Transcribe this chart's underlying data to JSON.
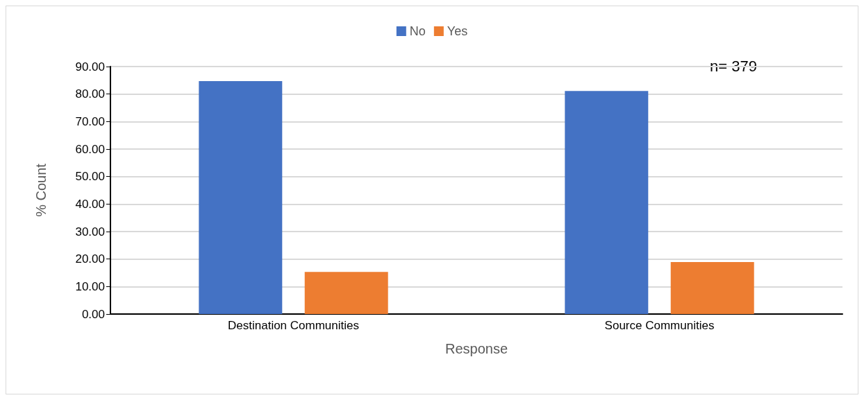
{
  "chart_data": {
    "type": "bar",
    "xlabel": "Response",
    "ylabel": "% Count",
    "categories": [
      "Destination Communities",
      "Source Communities"
    ],
    "series": [
      {
        "name": "No",
        "color": "#4472c4",
        "values": [
          84.7,
          81.1
        ]
      },
      {
        "name": "Yes",
        "color": "#ed7d31",
        "values": [
          15.3,
          18.9
        ]
      }
    ],
    "ylim": [
      0,
      90
    ],
    "yticks": [
      {
        "value": 0,
        "label": "0.00"
      },
      {
        "value": 10,
        "label": "10.00"
      },
      {
        "value": 20,
        "label": "20.00"
      },
      {
        "value": 30,
        "label": "30.00"
      },
      {
        "value": 40,
        "label": "40.00"
      },
      {
        "value": 50,
        "label": "50.00"
      },
      {
        "value": 60,
        "label": "60.00"
      },
      {
        "value": 70,
        "label": "70.00"
      },
      {
        "value": 80,
        "label": "80.00"
      },
      {
        "value": 90,
        "label": "90.00"
      }
    ],
    "annotations": [
      "n= 379"
    ],
    "grid": "y",
    "legend": "top"
  }
}
